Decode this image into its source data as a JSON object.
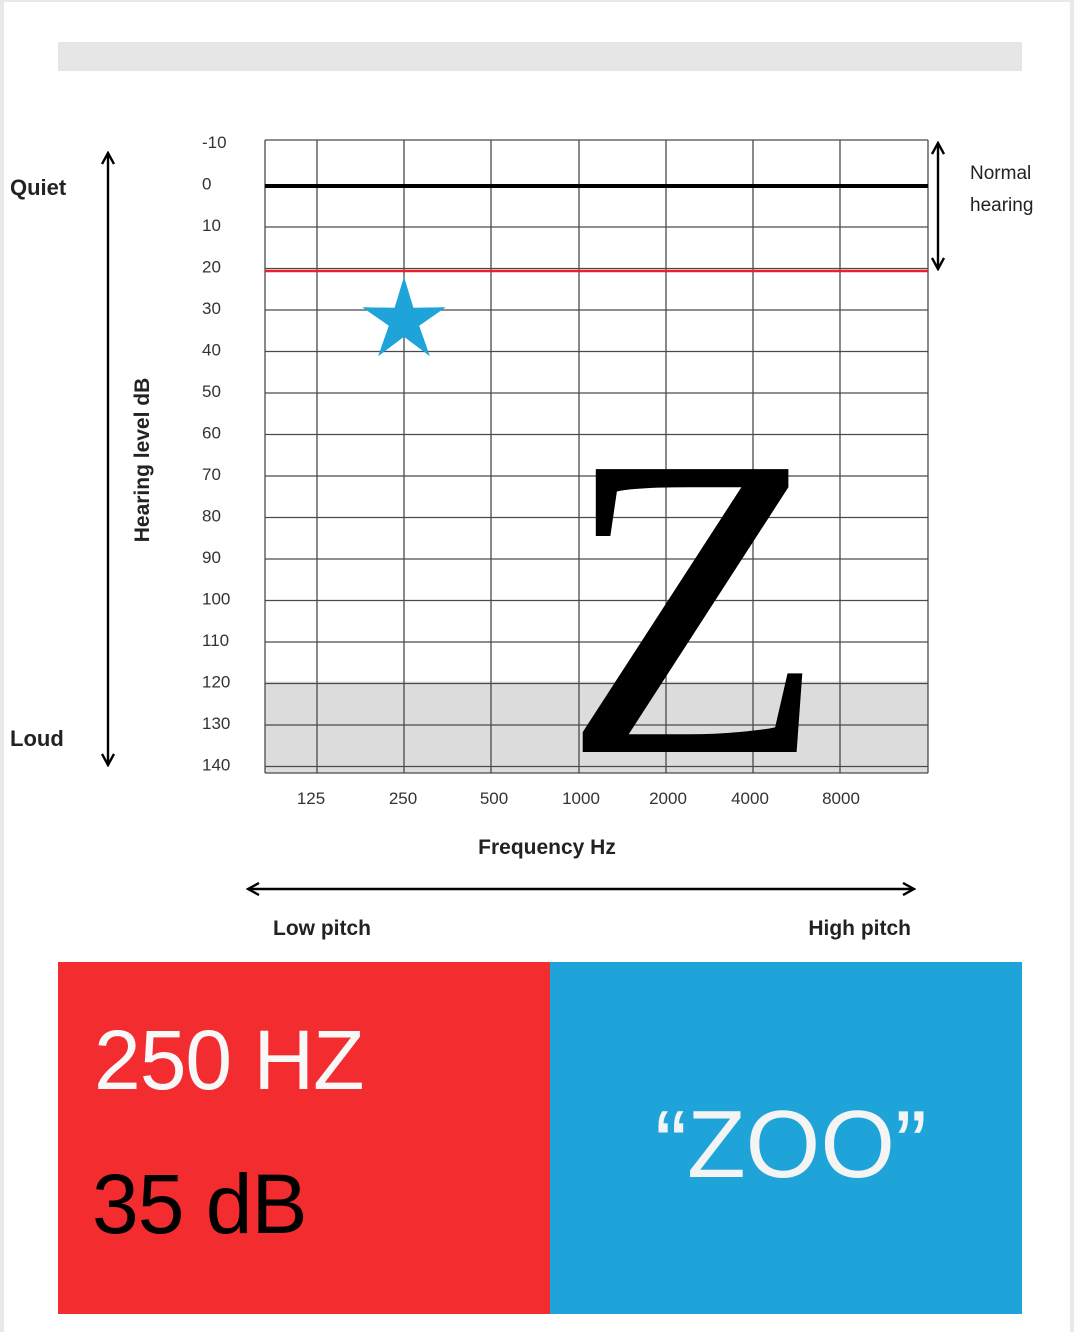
{
  "chart_data": {
    "type": "scatter",
    "xlabel": "Frequency Hz",
    "ylabel": "Hearing level dB",
    "x_categories": [
      "125",
      "250",
      "500",
      "1000",
      "2000",
      "4000",
      "8000"
    ],
    "y_ticks": [
      "-10",
      "0",
      "10",
      "20",
      "30",
      "40",
      "50",
      "60",
      "70",
      "80",
      "90",
      "100",
      "110",
      "120",
      "130",
      "140"
    ],
    "ylim": [
      -10,
      140
    ],
    "y_reversed": true,
    "grid": true,
    "reference_lines": [
      {
        "y": 0,
        "color": "#000000"
      },
      {
        "y": 20,
        "color": "#e8202a"
      }
    ],
    "shaded_region": {
      "y_from": 120,
      "y_to": 145
    },
    "points": [
      {
        "x": "250",
        "y": 35,
        "marker": "star",
        "color": "#1fa4d9"
      }
    ],
    "annotations": {
      "quiet": "Quiet",
      "loud": "Loud",
      "normal_line1": "Normal",
      "normal_line2": "hearing",
      "low_pitch": "Low pitch",
      "high_pitch": "High pitch",
      "letter": "Z"
    }
  },
  "panel": {
    "frequency": "250 HZ",
    "level": "35 dB",
    "word": "“ZOO”"
  },
  "colors": {
    "red_panel": "#f22c2f",
    "blue_panel": "#1fa4d9",
    "star": "#1fa4d9",
    "zero_line": "#000000",
    "normal_limit_line": "#e8202a",
    "shade": "#dcdcdc"
  }
}
